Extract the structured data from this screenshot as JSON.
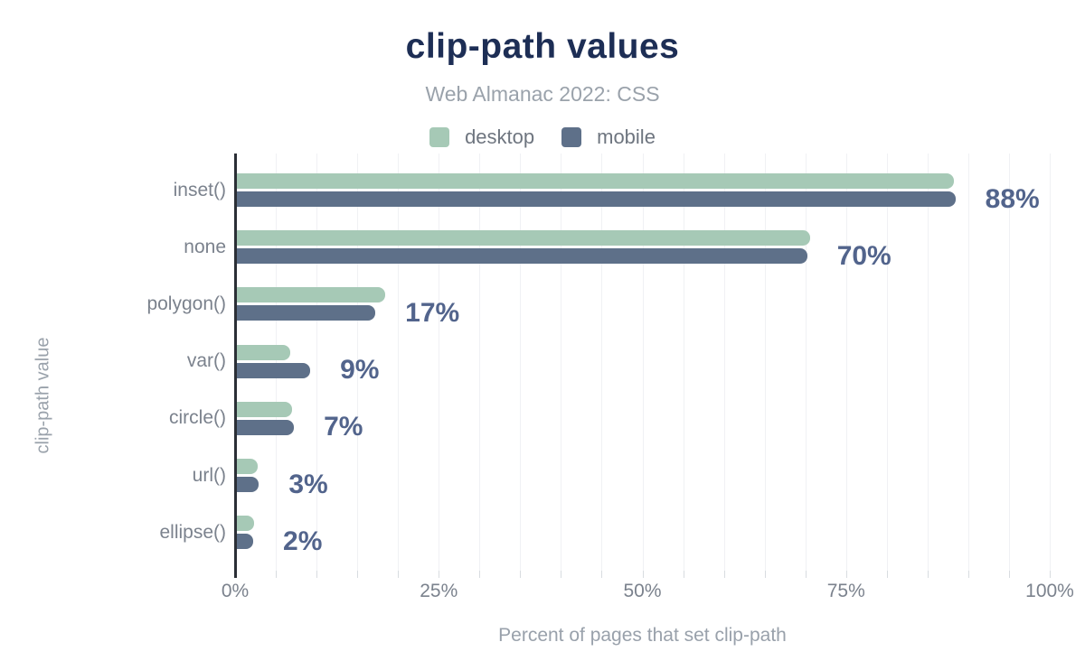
{
  "header": {
    "title": "clip-path values",
    "subtitle": "Web Almanac 2022: CSS"
  },
  "axes": {
    "y_title": "clip-path value",
    "x_title": "Percent of pages that set clip-path",
    "x_ticks": [
      {
        "value": 0,
        "label": "0%"
      },
      {
        "value": 25,
        "label": "25%"
      },
      {
        "value": 50,
        "label": "50%"
      },
      {
        "value": 75,
        "label": "75%"
      },
      {
        "value": 100,
        "label": "100%"
      }
    ]
  },
  "legend": {
    "items": [
      {
        "label": "desktop",
        "color": "#a6c9b6"
      },
      {
        "label": "mobile",
        "color": "#5e7089"
      }
    ]
  },
  "chart_data": {
    "type": "bar",
    "orientation": "horizontal",
    "title": "clip-path values",
    "subtitle": "Web Almanac 2022: CSS",
    "xlabel": "Percent of pages that set clip-path",
    "ylabel": "clip-path value",
    "xlim": [
      0,
      100
    ],
    "x_tick_labels": [
      "0%",
      "25%",
      "50%",
      "75%",
      "100%"
    ],
    "grid": "vertical gridlines every 5%",
    "legend_position": "top-center",
    "categories": [
      "inset()",
      "none",
      "polygon()",
      "var()",
      "circle()",
      "url()",
      "ellipse()"
    ],
    "series": [
      {
        "name": "desktop",
        "color": "#a6c9b6",
        "values": [
          88,
          70.4,
          18.2,
          6.5,
          6.8,
          2.5,
          2.1
        ]
      },
      {
        "name": "mobile",
        "color": "#5e7089",
        "values": [
          88.2,
          70,
          17,
          9,
          7,
          2.7,
          2
        ]
      }
    ],
    "value_labels": [
      "88%",
      "70%",
      "17%",
      "9%",
      "7%",
      "3%",
      "2%"
    ]
  },
  "colors": {
    "title": "#1d2e55",
    "subtitle": "#9aa2ab",
    "value_label": "#52648c",
    "axis_text": "#7b828d",
    "axis_line": "#2b2f36",
    "gridline": "#f0f1f4",
    "desktop": "#a6c9b6",
    "mobile": "#5e7089"
  }
}
